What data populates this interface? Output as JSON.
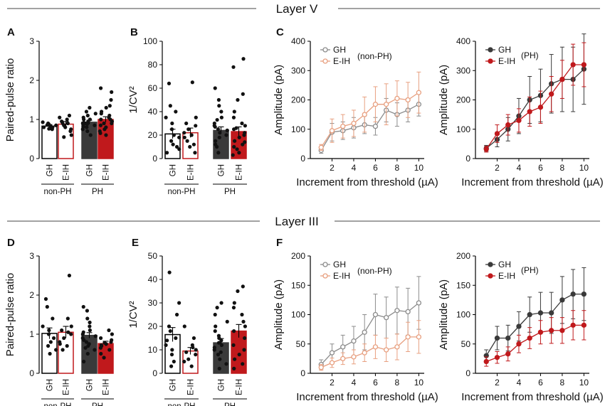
{
  "colors": {
    "gh_nonph": "#8c8c8c",
    "eih_nonph": "#e8a080",
    "gh_ph": "#3a3a3a",
    "eih_ph": "#c0191c",
    "bar_nonph_fill": "#ffffff",
    "axis": "#000000",
    "dots": "#111111"
  },
  "layers": [
    {
      "title": "Layer V"
    },
    {
      "title": "Layer III"
    }
  ],
  "panel_letters": [
    "A",
    "B",
    "C",
    "D",
    "E",
    "F"
  ],
  "chart_data": [
    {
      "id": "A",
      "type": "bar",
      "layer": "Layer V",
      "ylabel": "Paired-pulse ratio",
      "ylim": [
        0,
        3
      ],
      "yticks": [
        0,
        1,
        2,
        3
      ],
      "categories": [
        "GH",
        "E-IH",
        "GH",
        "E-IH"
      ],
      "groups": [
        "non-PH",
        "PH"
      ],
      "values": [
        0.83,
        0.88,
        0.93,
        1.0
      ],
      "sem": [
        0.04,
        0.07,
        0.05,
        0.07
      ],
      "points": [
        [
          0.75,
          0.8,
          0.85,
          0.78,
          0.9,
          0.82,
          0.88,
          0.76,
          0.93,
          0.8,
          0.86
        ],
        [
          0.55,
          0.7,
          0.8,
          0.9,
          1.0,
          1.05,
          0.85,
          0.75,
          0.95,
          0.6,
          0.9,
          1.1
        ],
        [
          0.6,
          0.8,
          0.9,
          1.0,
          1.1,
          0.85,
          0.95,
          1.2,
          0.75,
          0.9,
          1.0,
          1.3,
          0.7,
          0.88,
          1.05,
          0.92,
          1.15,
          0.82
        ],
        [
          0.6,
          0.7,
          0.8,
          0.9,
          1.0,
          1.1,
          1.2,
          1.3,
          1.5,
          1.7,
          1.8,
          0.95,
          1.05,
          0.85,
          1.15,
          0.75,
          1.35,
          0.65,
          1.0,
          0.9
        ]
      ]
    },
    {
      "id": "B",
      "type": "bar",
      "layer": "Layer V",
      "ylabel": "1/CV²",
      "ylim": [
        0,
        100
      ],
      "yticks": [
        0,
        20,
        40,
        60,
        80,
        100
      ],
      "categories": [
        "GH",
        "E-IH",
        "GH",
        "E-IH"
      ],
      "groups": [
        "non-PH",
        "PH"
      ],
      "values": [
        21,
        22,
        24,
        23
      ],
      "sem": [
        4,
        4,
        3,
        4
      ],
      "points": [
        [
          5,
          8,
          12,
          15,
          20,
          25,
          30,
          35,
          40,
          45,
          64,
          10,
          18
        ],
        [
          5,
          10,
          15,
          20,
          22,
          25,
          28,
          30,
          35,
          65,
          12,
          18
        ],
        [
          5,
          10,
          15,
          18,
          20,
          22,
          25,
          28,
          30,
          35,
          40,
          45,
          50,
          60,
          12,
          24,
          27,
          33
        ],
        [
          3,
          5,
          8,
          10,
          12,
          15,
          18,
          20,
          22,
          25,
          28,
          30,
          35,
          40,
          50,
          55,
          78,
          85,
          14,
          26
        ]
      ]
    },
    {
      "id": "C1",
      "type": "line",
      "layer": "Layer V",
      "xlabel": "Increment from threshold (µA)",
      "ylabel": "Amplitude (pA)",
      "xlim": [
        0,
        10.5
      ],
      "ylim": [
        0,
        400
      ],
      "xticks": [
        2,
        4,
        6,
        8,
        10
      ],
      "yticks": [
        0,
        100,
        200,
        300,
        400
      ],
      "legend_title": "(non-PH)",
      "x": [
        1,
        2,
        3,
        4,
        5,
        6,
        7,
        8,
        9,
        10
      ],
      "series": [
        {
          "name": "GH",
          "values": [
            28,
            90,
            95,
            105,
            115,
            110,
            165,
            150,
            165,
            185
          ],
          "err": [
            10,
            30,
            30,
            35,
            30,
            30,
            40,
            40,
            40,
            40
          ]
        },
        {
          "name": "E-IH",
          "values": [
            38,
            95,
            110,
            120,
            150,
            185,
            185,
            205,
            200,
            225
          ],
          "err": [
            10,
            40,
            40,
            45,
            60,
            60,
            70,
            60,
            60,
            70
          ]
        }
      ]
    },
    {
      "id": "C2",
      "type": "line",
      "layer": "Layer V",
      "xlabel": "Increment from threshold (µA)",
      "ylabel": "Amplitude (pA)",
      "xlim": [
        0,
        10.5
      ],
      "ylim": [
        0,
        400
      ],
      "xticks": [
        2,
        4,
        6,
        8,
        10
      ],
      "yticks": [
        0,
        100,
        200,
        300,
        400
      ],
      "legend_title": "(PH)",
      "x": [
        1,
        2,
        3,
        4,
        5,
        6,
        7,
        8,
        9,
        10
      ],
      "series": [
        {
          "name": "GH",
          "values": [
            35,
            65,
            100,
            145,
            200,
            215,
            255,
            270,
            270,
            305
          ],
          "err": [
            10,
            25,
            40,
            60,
            80,
            90,
            100,
            110,
            110,
            120
          ]
        },
        {
          "name": "E-IH",
          "values": [
            32,
            85,
            115,
            130,
            160,
            175,
            220,
            270,
            320,
            320
          ],
          "err": [
            10,
            30,
            35,
            40,
            50,
            55,
            60,
            65,
            70,
            75
          ]
        }
      ]
    },
    {
      "id": "D",
      "type": "bar",
      "layer": "Layer III",
      "ylabel": "Paired-pulse ratio",
      "ylim": [
        0,
        3
      ],
      "yticks": [
        0,
        1,
        2,
        3
      ],
      "categories": [
        "GH",
        "E-IH",
        "GH",
        "E-IH"
      ],
      "groups": [
        "non-PH",
        "PH"
      ],
      "values": [
        1.02,
        1.05,
        0.97,
        0.76
      ],
      "sem": [
        0.14,
        0.15,
        0.07,
        0.06
      ],
      "points": [
        [
          0.5,
          0.7,
          0.8,
          1.0,
          1.1,
          1.2,
          1.4,
          1.7,
          1.9,
          0.9,
          0.6
        ],
        [
          0.6,
          0.7,
          0.8,
          0.9,
          1.0,
          1.1,
          1.2,
          1.4,
          2.5,
          0.75,
          1.05
        ],
        [
          0.3,
          0.5,
          0.6,
          0.7,
          0.8,
          0.9,
          1.0,
          1.1,
          1.2,
          1.4,
          1.6,
          1.7,
          0.85,
          0.95,
          1.05,
          0.65,
          1.3,
          0.75
        ],
        [
          0.4,
          0.5,
          0.6,
          0.7,
          0.75,
          0.8,
          0.85,
          0.9,
          1.0,
          1.1,
          0.65,
          0.72,
          0.78
        ]
      ]
    },
    {
      "id": "E",
      "type": "bar",
      "layer": "Layer III",
      "ylabel": "1/CV²",
      "ylim": [
        0,
        50
      ],
      "yticks": [
        0,
        10,
        20,
        30,
        40,
        50
      ],
      "categories": [
        "GH",
        "E-IH",
        "GH",
        "E-IH"
      ],
      "groups": [
        "non-PH",
        "PH"
      ],
      "values": [
        16.5,
        9.5,
        13,
        18
      ],
      "sem": [
        3,
        1.5,
        1.8,
        2.8
      ],
      "points": [
        [
          3,
          5,
          8,
          10,
          12,
          15,
          18,
          20,
          25,
          30,
          43,
          14
        ],
        [
          3,
          5,
          6,
          8,
          9,
          10,
          12,
          15,
          20,
          11
        ],
        [
          2,
          4,
          6,
          8,
          10,
          11,
          12,
          14,
          15,
          16,
          18,
          20,
          22,
          25,
          28,
          30,
          9,
          13
        ],
        [
          2,
          4,
          6,
          8,
          10,
          15,
          18,
          20,
          25,
          28,
          30,
          35,
          37,
          12,
          22
        ]
      ]
    },
    {
      "id": "F1",
      "type": "line",
      "layer": "Layer III",
      "xlabel": "Increment from threshold (µA)",
      "ylabel": "Amplitude (pA)",
      "xlim": [
        0,
        10.5
      ],
      "ylim": [
        0,
        200
      ],
      "xticks": [
        2,
        4,
        6,
        8,
        10
      ],
      "yticks": [
        0,
        50,
        100,
        150,
        200
      ],
      "legend_title": "(non-PH)",
      "x": [
        1,
        2,
        3,
        4,
        5,
        6,
        7,
        8,
        9,
        10
      ],
      "series": [
        {
          "name": "GH",
          "values": [
            15,
            35,
            45,
            55,
            70,
            100,
            95,
            107,
            105,
            120
          ],
          "err": [
            8,
            15,
            20,
            25,
            30,
            35,
            35,
            40,
            40,
            45
          ]
        },
        {
          "name": "E-IH",
          "values": [
            10,
            18,
            25,
            28,
            35,
            45,
            40,
            45,
            62,
            62
          ],
          "err": [
            5,
            8,
            10,
            12,
            15,
            20,
            20,
            22,
            25,
            28
          ]
        }
      ]
    },
    {
      "id": "F2",
      "type": "line",
      "layer": "Layer III",
      "xlabel": "Increment from threshold (µA)",
      "ylabel": "Amplitude (pA)",
      "xlim": [
        0,
        10.5
      ],
      "ylim": [
        0,
        200
      ],
      "xticks": [
        2,
        4,
        6,
        8,
        10
      ],
      "yticks": [
        0,
        50,
        100,
        150,
        200
      ],
      "legend_title": "(PH)",
      "x": [
        1,
        2,
        3,
        4,
        5,
        6,
        7,
        8,
        9,
        10
      ],
      "series": [
        {
          "name": "GH",
          "values": [
            30,
            60,
            60,
            80,
            100,
            103,
            103,
            125,
            135,
            135
          ],
          "err": [
            10,
            20,
            22,
            25,
            30,
            35,
            35,
            40,
            42,
            45
          ]
        },
        {
          "name": "E-IH",
          "values": [
            20,
            27,
            33,
            50,
            60,
            70,
            73,
            73,
            82,
            82
          ],
          "err": [
            8,
            10,
            12,
            15,
            18,
            20,
            22,
            22,
            25,
            25
          ]
        }
      ]
    }
  ]
}
